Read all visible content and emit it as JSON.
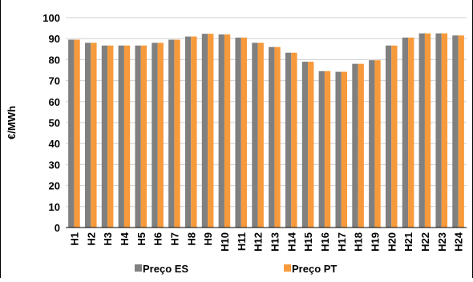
{
  "chart_data": {
    "type": "bar",
    "ylabel": "€/MWh",
    "ylim": [
      0,
      100
    ],
    "yticks": [
      0,
      10,
      20,
      30,
      40,
      50,
      60,
      70,
      80,
      90,
      100
    ],
    "grid": "horizontal",
    "legend_position": "bottom",
    "categories": [
      "H1",
      "H2",
      "H3",
      "H4",
      "H5",
      "H6",
      "H7",
      "H8",
      "H9",
      "H10",
      "H11",
      "H12",
      "H13",
      "H14",
      "H15",
      "H16",
      "H17",
      "H18",
      "H19",
      "H20",
      "H21",
      "H22",
      "H23",
      "H24"
    ],
    "series": [
      {
        "name": "Preço ES",
        "color": "#808080",
        "values": [
          89.5,
          88.0,
          86.7,
          86.7,
          86.7,
          88.0,
          89.5,
          91.0,
          92.3,
          92.0,
          90.5,
          88.0,
          86.0,
          83.3,
          79.0,
          74.5,
          74.2,
          78.0,
          79.7,
          86.7,
          90.5,
          92.5,
          92.5,
          91.5
        ]
      },
      {
        "name": "Preço PT",
        "color": "#f79a3c",
        "values": [
          89.5,
          88.0,
          86.7,
          86.7,
          86.7,
          88.0,
          89.5,
          91.0,
          92.3,
          92.0,
          90.5,
          88.0,
          86.0,
          83.3,
          79.0,
          74.5,
          74.2,
          78.0,
          79.7,
          86.7,
          90.5,
          92.5,
          92.5,
          91.5
        ]
      }
    ]
  }
}
